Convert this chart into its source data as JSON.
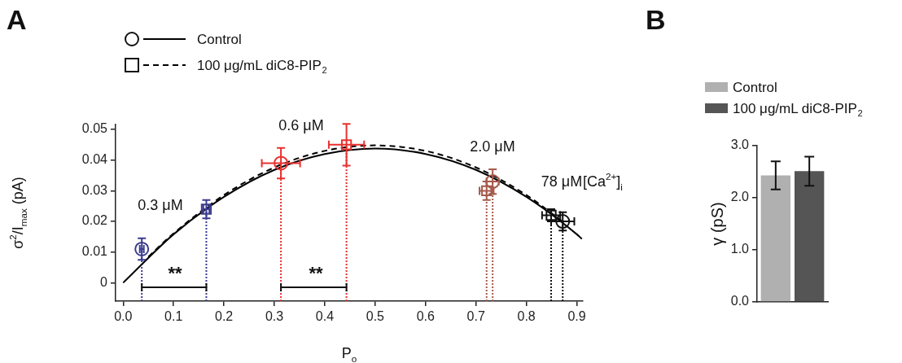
{
  "chart_data": [
    {
      "type": "scatter",
      "title": "A",
      "xlabel": "P$_{o}$",
      "ylabel": "σ$^{2}$/I$_{max}$ (pA)",
      "legend": "top left",
      "xlim": [
        -0.015,
        0.912
      ],
      "xticks": [
        {
          "value": 0,
          "label": "0.0"
        },
        {
          "value": 0.1,
          "label": "0.1"
        },
        {
          "value": 0.2,
          "label": "0.2"
        },
        {
          "value": 0.3,
          "label": "0.3"
        },
        {
          "value": 0.4,
          "label": "0.4"
        },
        {
          "value": 0.5,
          "label": "0.5"
        },
        {
          "value": 0.6,
          "label": "0.6"
        },
        {
          "value": 0.7,
          "label": "0.7"
        },
        {
          "value": 0.8,
          "label": "0.8"
        },
        {
          "value": 0.9,
          "label": "0.9"
        }
      ],
      "ylim": [
        -0.006,
        0.0516
      ],
      "yticks": [
        0,
        0.01,
        0.02,
        0.03,
        0.04,
        0.05
      ],
      "series": [
        {
          "type": "scatter",
          "marker": "circle",
          "colors": [
            "#3b3b8f",
            "#e8312f",
            "#a65a4a",
            "#111111"
          ],
          "x": [
            0.037,
            0.313,
            0.733,
            0.872
          ],
          "values": [
            0.011,
            0.039,
            0.033,
            0.02
          ],
          "errors": [
            0.0035,
            0.005,
            0.004,
            0.003
          ],
          "xerrors": [
            0.004,
            0.038,
            0.012,
            0.023
          ]
        },
        {
          "type": "scatter",
          "marker": "square",
          "colors": [
            "#3b3b8f",
            "#e8312f",
            "#a65a4a",
            "#111111"
          ],
          "x": [
            0.165,
            0.443,
            0.721,
            0.849
          ],
          "values": [
            0.024,
            0.045,
            0.03,
            0.022
          ],
          "errors": [
            0.003,
            0.0068,
            0.003,
            0.002
          ],
          "xerrors": [
            0.006,
            0.035,
            0.014,
            0.018
          ]
        },
        {
          "type": "line",
          "name": "Control",
          "color": "#000000",
          "line_style": "solid",
          "x": [
            0,
            0.1,
            0.2,
            0.3,
            0.4,
            0.5,
            0.6,
            0.7,
            0.8,
            0.9,
            0.91
          ],
          "values": [
            0,
            0.0158,
            0.028,
            0.0368,
            0.042,
            0.0438,
            0.042,
            0.0368,
            0.028,
            0.0158,
            0.0143
          ]
        },
        {
          "type": "line",
          "name": "100 μg/mL diC8-PIP$_{2}$",
          "color": "#000000",
          "line_style": "dashed",
          "x": [
            0.05,
            0.1,
            0.2,
            0.3,
            0.4,
            0.5,
            0.6,
            0.7,
            0.8,
            0.87
          ],
          "values": [
            0.0085,
            0.0161,
            0.0286,
            0.0376,
            0.043,
            0.0448,
            0.043,
            0.0376,
            0.0286,
            0.0202
          ]
        }
      ],
      "ref_lines": [
        {
          "axis": "x",
          "value": 0.037,
          "color": "#3b3b8f",
          "line_style": "dotted"
        },
        {
          "axis": "x",
          "value": 0.165,
          "color": "#3b3b8f",
          "line_style": "dotted"
        },
        {
          "axis": "x",
          "value": 0.313,
          "color": "#e8312f",
          "line_style": "dotted"
        },
        {
          "axis": "x",
          "value": 0.443,
          "color": "#e8312f",
          "line_style": "dotted"
        },
        {
          "axis": "x",
          "value": 0.721,
          "color": "#a65a4a",
          "line_style": "dotted"
        },
        {
          "axis": "x",
          "value": 0.733,
          "color": "#a65a4a",
          "line_style": "dotted"
        },
        {
          "axis": "x",
          "value": 0.849,
          "color": "#111111",
          "line_style": "dotted"
        },
        {
          "axis": "x",
          "value": 0.872,
          "color": "#111111",
          "line_style": "dotted"
        }
      ],
      "annotations": [
        "0.3 μM",
        "0.6 μM",
        "2.0 μM",
        "78 μM",
        "[Ca$^{2+}$]$_{i}$",
        "**",
        "**"
      ]
    },
    {
      "type": "bar",
      "title": "B",
      "ylabel": "γ (pS)",
      "legend": "top left",
      "categories": [
        null
      ],
      "ylim": [
        0,
        3
      ],
      "yticks": [
        {
          "value": 0,
          "label": "0.0"
        },
        {
          "value": 1,
          "label": "1.0"
        },
        {
          "value": 2,
          "label": "2.0"
        },
        {
          "value": 3,
          "label": "3.0"
        }
      ],
      "series": [
        {
          "name": "Control",
          "color": "#b0b0b0",
          "values": [
            2.43
          ],
          "errors": [
            0.27
          ]
        },
        {
          "name": "100 μg/mL diC8-PIP$_{2}$",
          "color": "#555555",
          "values": [
            2.51
          ],
          "errors": [
            0.28
          ]
        }
      ]
    }
  ]
}
